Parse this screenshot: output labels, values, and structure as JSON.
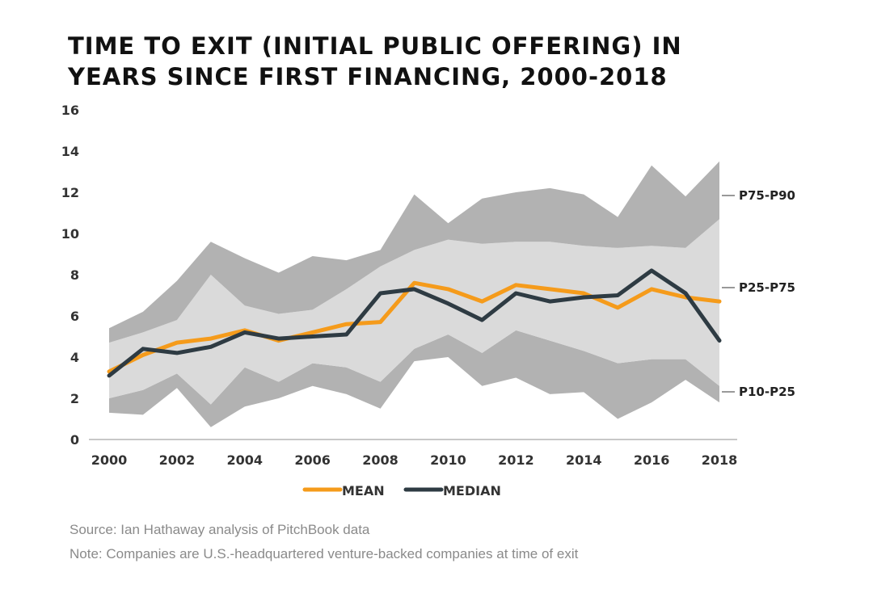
{
  "title_lines": [
    "TIME TO EXIT (INITIAL PUBLIC OFFERING) IN",
    "YEARS SINCE FIRST FINANCING, 2000-2018"
  ],
  "source": "Source: Ian Hathaway analysis of PitchBook data",
  "note": "Note: Companies are U.S.-headquartered venture-backed companies at time of exit",
  "colors": {
    "outer_band": "#b2b2b2",
    "inner_band": "#dadada",
    "mean": "#f59b1b",
    "median": "#2e3b43",
    "tick": "#333333"
  },
  "chart_data": {
    "type": "line",
    "title": "TIME TO EXIT (INITIAL PUBLIC OFFERING) IN YEARS SINCE FIRST FINANCING, 2000-2018",
    "xlabel": "",
    "ylabel": "",
    "x": [
      2000,
      2001,
      2002,
      2003,
      2004,
      2005,
      2006,
      2007,
      2008,
      2009,
      2010,
      2011,
      2012,
      2013,
      2014,
      2015,
      2016,
      2017,
      2018
    ],
    "x_ticks": [
      "2000",
      "2002",
      "2004",
      "2006",
      "2008",
      "2010",
      "2012",
      "2014",
      "2016",
      "2018"
    ],
    "ylim": [
      0,
      16
    ],
    "y_ticks": [
      "0",
      "2",
      "4",
      "6",
      "8",
      "10",
      "12",
      "14",
      "16"
    ],
    "grid": false,
    "legend_position": "bottom",
    "series": [
      {
        "name": "MEAN",
        "values": [
          3.3,
          4.1,
          4.7,
          4.9,
          5.3,
          4.8,
          5.2,
          5.6,
          5.7,
          7.6,
          7.3,
          6.7,
          7.5,
          7.3,
          7.1,
          6.4,
          7.3,
          6.9,
          6.7
        ]
      },
      {
        "name": "MEDIAN",
        "values": [
          3.1,
          4.4,
          4.2,
          4.5,
          5.2,
          4.9,
          5.0,
          5.1,
          7.1,
          7.3,
          6.6,
          5.8,
          7.1,
          6.7,
          6.9,
          7.0,
          8.2,
          7.1,
          4.8
        ]
      }
    ],
    "bands": [
      {
        "name": "P10-P25",
        "lower": [
          1.3,
          1.2,
          2.5,
          0.6,
          1.6,
          2.0,
          2.6,
          2.2,
          1.5,
          3.8,
          4.0,
          2.6,
          3.0,
          2.2,
          2.3,
          1.0,
          1.8,
          2.9,
          1.8
        ],
        "upper": [
          2.0,
          2.4,
          3.2,
          1.7,
          3.5,
          2.8,
          3.7,
          3.5,
          2.8,
          4.4,
          5.1,
          4.2,
          5.3,
          4.8,
          4.3,
          3.7,
          3.9,
          3.9,
          2.6
        ]
      },
      {
        "name": "P25-P75",
        "lower": [
          2.0,
          2.4,
          3.2,
          1.7,
          3.5,
          2.8,
          3.7,
          3.5,
          2.8,
          4.4,
          5.1,
          4.2,
          5.3,
          4.8,
          4.3,
          3.7,
          3.9,
          3.9,
          2.6
        ],
        "upper": [
          4.7,
          5.2,
          5.8,
          8.0,
          6.5,
          6.1,
          6.3,
          7.3,
          8.4,
          9.2,
          9.7,
          9.5,
          9.6,
          9.6,
          9.4,
          9.3,
          9.4,
          9.3,
          10.7
        ]
      },
      {
        "name": "P75-P90",
        "lower": [
          4.7,
          5.2,
          5.8,
          8.0,
          6.5,
          6.1,
          6.3,
          7.3,
          8.4,
          9.2,
          9.7,
          9.5,
          9.6,
          9.6,
          9.4,
          9.3,
          9.4,
          9.3,
          10.7
        ],
        "upper": [
          5.4,
          6.2,
          7.7,
          9.6,
          8.8,
          8.1,
          8.9,
          8.7,
          9.2,
          11.9,
          10.5,
          11.7,
          12.0,
          12.2,
          11.9,
          10.8,
          13.3,
          11.8,
          13.5
        ]
      }
    ]
  }
}
